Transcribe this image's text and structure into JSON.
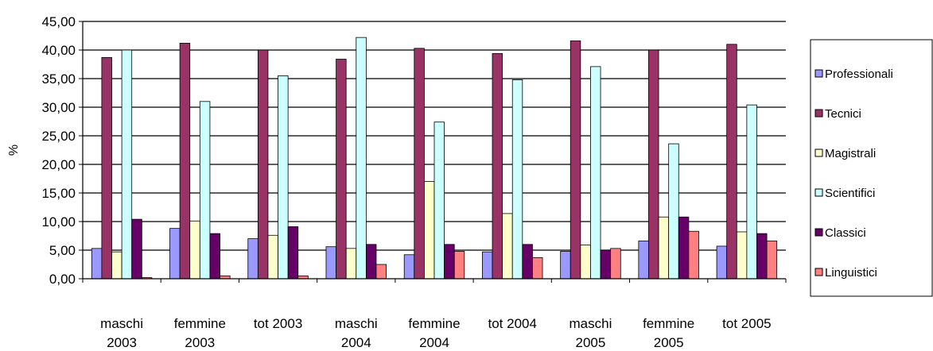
{
  "chart_data": {
    "type": "bar",
    "title": "",
    "xlabel": "",
    "ylabel": "%",
    "ylim": [
      0,
      45
    ],
    "ytick_step": 5,
    "ytick_labels": [
      "0,00",
      "5,00",
      "10,00",
      "15,00",
      "20,00",
      "25,00",
      "30,00",
      "35,00",
      "40,00",
      "45,00"
    ],
    "grid": true,
    "legend_position": "right",
    "categories": [
      [
        "maschi",
        "2003"
      ],
      [
        "femmine",
        "2003"
      ],
      [
        "tot 2003"
      ],
      [
        "maschi",
        "2004"
      ],
      [
        "femmine",
        "2004"
      ],
      [
        "tot 2004"
      ],
      [
        "maschi",
        "2005"
      ],
      [
        "femmine",
        "2005"
      ],
      [
        "tot 2005"
      ]
    ],
    "series": [
      {
        "name": "Professionali",
        "color": "#9999ff",
        "values": [
          5.3,
          8.8,
          7.0,
          5.6,
          4.2,
          4.7,
          4.8,
          6.6,
          5.7
        ]
      },
      {
        "name": "Tecnici",
        "color": "#993366",
        "values": [
          38.7,
          41.2,
          40.0,
          38.4,
          40.3,
          39.4,
          41.6,
          40.0,
          41.0
        ]
      },
      {
        "name": "Magistrali",
        "color": "#ffffcc",
        "values": [
          4.7,
          10.1,
          7.6,
          5.3,
          17.0,
          11.4,
          5.9,
          10.8,
          8.2
        ]
      },
      {
        "name": "Scientifici",
        "color": "#ccffff",
        "values": [
          40.0,
          31.0,
          35.5,
          42.2,
          27.4,
          34.8,
          37.1,
          23.6,
          30.4
        ]
      },
      {
        "name": "Classici",
        "color": "#660066",
        "values": [
          10.4,
          7.9,
          9.1,
          6.0,
          6.0,
          6.0,
          5.0,
          10.8,
          7.9
        ]
      },
      {
        "name": "Linguistici",
        "color": "#ff8080",
        "values": [
          0.2,
          0.5,
          0.5,
          2.5,
          4.8,
          3.7,
          5.3,
          8.3,
          6.6
        ]
      }
    ]
  }
}
